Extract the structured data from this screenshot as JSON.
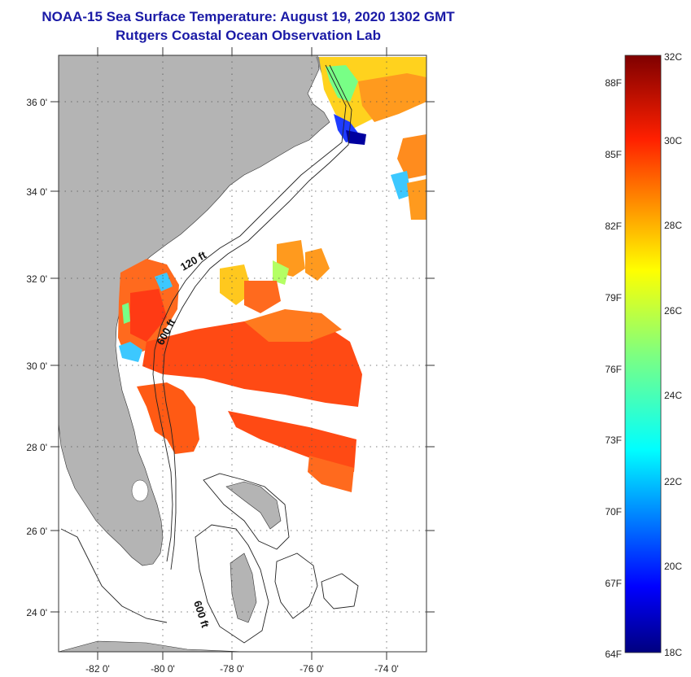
{
  "title": {
    "line1": "NOAA-15 Sea Surface Temperature:  August 19, 2020 1302 GMT",
    "line2": "Rutgers Coastal Ocean Observation Lab"
  },
  "map": {
    "lat_ticks": [
      "36 0'",
      "34 0'",
      "32 0'",
      "30 0'",
      "28 0'",
      "26 0'",
      "24 0'"
    ],
    "lon_ticks": [
      "-82 0'",
      "-80 0'",
      "-78 0'",
      "-76 0'",
      "-74 0'"
    ],
    "contour_labels": [
      "120 ft",
      "600 ft",
      "600 ft"
    ],
    "colors": {
      "land": "#b4b4b4",
      "ocean_no_data": "#ffffff",
      "grid": "#555555"
    }
  },
  "colorbar": {
    "fahrenheit_labels": [
      "88F",
      "85F",
      "82F",
      "79F",
      "76F",
      "73F",
      "70F",
      "67F",
      "64F"
    ],
    "celsius_labels": [
      "32C",
      "30C",
      "28C",
      "26C",
      "24C",
      "22C",
      "20C",
      "18C"
    ],
    "range_celsius": [
      18,
      32
    ],
    "colormap": [
      "#00007f",
      "#0000ff",
      "#007fff",
      "#00ffff",
      "#7fff7f",
      "#ffff00",
      "#ff7f00",
      "#ff0000",
      "#7f0000"
    ]
  }
}
